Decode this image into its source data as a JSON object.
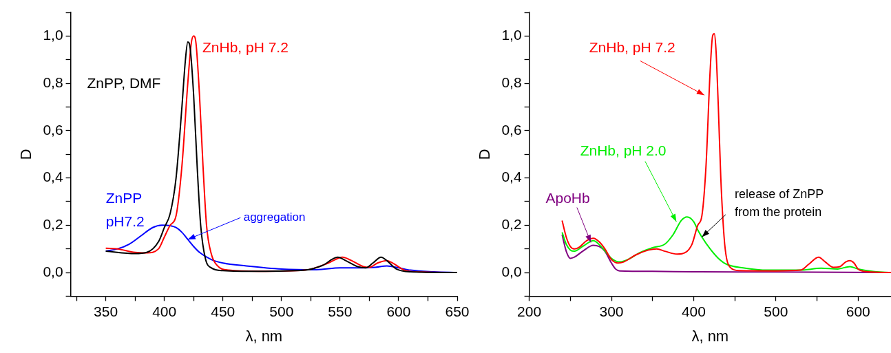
{
  "chart_data": [
    {
      "type": "line",
      "xlabel": "λ, nm",
      "ylabel": "D",
      "xlim": [
        320,
        650
      ],
      "ylim": [
        -0.1,
        1.1
      ],
      "xticks": [
        {
          "value": 325,
          "label": null
        },
        350,
        {
          "value": 375,
          "label": null
        },
        400,
        {
          "value": 425,
          "label": null
        },
        450,
        {
          "value": 475,
          "label": null
        },
        500,
        {
          "value": 525,
          "label": null
        },
        550,
        {
          "value": 575,
          "label": null
        },
        600,
        {
          "value": 625,
          "label": null
        },
        650
      ],
      "yticks": [
        {
          "value": -0.1,
          "label": null
        },
        {
          "value": 0,
          "label": "0,0"
        },
        {
          "value": 0.1,
          "label": null
        },
        {
          "value": 0.2,
          "label": "0,2"
        },
        {
          "value": 0.3,
          "label": null
        },
        {
          "value": 0.4,
          "label": "0,4"
        },
        {
          "value": 0.5,
          "label": null
        },
        {
          "value": 0.6,
          "label": "0,6"
        },
        {
          "value": 0.7,
          "label": null
        },
        {
          "value": 0.8,
          "label": "0,8"
        },
        {
          "value": 0.9,
          "label": null
        },
        {
          "value": 1,
          "label": "1,0"
        },
        {
          "value": 1.1,
          "label": null
        }
      ],
      "series": [
        {
          "name": "ZnPP, DMF",
          "color": "#000000",
          "x": [
            350,
            375,
            385,
            395,
            400,
            405,
            410,
            415,
            418,
            420,
            422,
            425,
            428,
            431,
            435,
            440,
            450,
            480,
            520,
            535,
            548,
            555,
            565,
            572,
            578,
            585,
            590,
            598,
            610,
            650
          ],
          "values": [
            0.09,
            0.08,
            0.085,
            0.13,
            0.19,
            0.25,
            0.4,
            0.7,
            0.9,
            0.975,
            0.95,
            0.75,
            0.45,
            0.2,
            0.06,
            0.02,
            0.008,
            0.005,
            0.01,
            0.03,
            0.065,
            0.05,
            0.025,
            0.02,
            0.04,
            0.065,
            0.05,
            0.015,
            0.003,
            0.0
          ]
        },
        {
          "name": "ZnHb, pH 7.2",
          "color": "#ff0000",
          "x": [
            350,
            360,
            375,
            385,
            395,
            400,
            405,
            410,
            415,
            420,
            423,
            425,
            427,
            430,
            433,
            436,
            440,
            445,
            455,
            480,
            520,
            540,
            552,
            560,
            570,
            575,
            582,
            590,
            595,
            605,
            620,
            650
          ],
          "values": [
            0.103,
            0.1,
            0.085,
            0.083,
            0.1,
            0.15,
            0.2,
            0.24,
            0.45,
            0.8,
            0.97,
            1.0,
            0.97,
            0.75,
            0.45,
            0.2,
            0.08,
            0.03,
            0.01,
            0.005,
            0.01,
            0.04,
            0.065,
            0.05,
            0.025,
            0.022,
            0.04,
            0.05,
            0.04,
            0.01,
            0.002,
            0.0
          ]
        },
        {
          "name": "ZnPP\npH7.2",
          "color": "#0000ff",
          "x": [
            350,
            360,
            370,
            380,
            390,
            398,
            405,
            410,
            415,
            420,
            425,
            430,
            440,
            450,
            470,
            500,
            530,
            550,
            570,
            580,
            590,
            600,
            610,
            630,
            650
          ],
          "values": [
            0.09,
            0.1,
            0.12,
            0.155,
            0.19,
            0.2,
            0.198,
            0.19,
            0.17,
            0.14,
            0.11,
            0.085,
            0.055,
            0.04,
            0.028,
            0.015,
            0.012,
            0.02,
            0.02,
            0.022,
            0.028,
            0.02,
            0.01,
            0.003,
            0.0
          ]
        }
      ],
      "annotations": [
        {
          "text": "aggregation",
          "x": 420,
          "y": 0.14
        }
      ]
    },
    {
      "type": "line",
      "xlabel": "λ, nm",
      "ylabel": "D",
      "xlim": [
        200,
        640
      ],
      "ylim": [
        -0.1,
        1.1
      ],
      "xticks": [
        200,
        {
          "value": 250,
          "label": null
        },
        300,
        {
          "value": 350,
          "label": null
        },
        400,
        {
          "value": 450,
          "label": null
        },
        500,
        {
          "value": 550,
          "label": null
        },
        600
      ],
      "yticks": [
        {
          "value": -0.1,
          "label": null
        },
        {
          "value": 0,
          "label": "0,0"
        },
        {
          "value": 0.1,
          "label": null
        },
        {
          "value": 0.2,
          "label": "0,2"
        },
        {
          "value": 0.3,
          "label": null
        },
        {
          "value": 0.4,
          "label": "0,4"
        },
        {
          "value": 0.5,
          "label": null
        },
        {
          "value": 0.6,
          "label": "0,6"
        },
        {
          "value": 0.7,
          "label": null
        },
        {
          "value": 0.8,
          "label": "0,8"
        },
        {
          "value": 0.9,
          "label": null
        },
        {
          "value": 1,
          "label": "1,0"
        },
        {
          "value": 1.1,
          "label": null
        }
      ],
      "series": [
        {
          "name": "ZnHb, pH 7.2",
          "color": "#ff0000",
          "x": [
            240,
            245,
            250,
            255,
            260,
            270,
            278,
            285,
            292,
            300,
            308,
            315,
            330,
            345,
            355,
            365,
            380,
            390,
            398,
            405,
            410,
            415,
            420,
            423,
            425,
            427,
            430,
            433,
            437,
            440,
            445,
            455,
            500,
            530,
            540,
            552,
            560,
            570,
            578,
            585,
            590,
            595,
            600,
            610,
            640
          ],
          "values": [
            0.22,
            0.15,
            0.11,
            0.1,
            0.105,
            0.135,
            0.145,
            0.13,
            0.1,
            0.055,
            0.04,
            0.045,
            0.075,
            0.095,
            0.1,
            0.09,
            0.078,
            0.085,
            0.12,
            0.2,
            0.24,
            0.45,
            0.85,
            1.0,
            1.01,
            0.95,
            0.7,
            0.4,
            0.15,
            0.06,
            0.02,
            0.008,
            0.007,
            0.01,
            0.035,
            0.065,
            0.045,
            0.022,
            0.025,
            0.045,
            0.05,
            0.04,
            0.015,
            0.004,
            0.0
          ]
        },
        {
          "name": "ZnHb, pH 2.0",
          "color": "#00ee00",
          "x": [
            240,
            245,
            250,
            255,
            265,
            278,
            290,
            300,
            310,
            320,
            335,
            350,
            365,
            375,
            385,
            392,
            400,
            405,
            410,
            420,
            430,
            440,
            460,
            490,
            530,
            555,
            575,
            590,
            600,
            620,
            640
          ],
          "values": [
            0.17,
            0.12,
            0.095,
            0.09,
            0.11,
            0.135,
            0.1,
            0.06,
            0.045,
            0.055,
            0.085,
            0.105,
            0.12,
            0.16,
            0.22,
            0.235,
            0.215,
            0.18,
            0.15,
            0.1,
            0.06,
            0.035,
            0.02,
            0.01,
            0.01,
            0.018,
            0.015,
            0.025,
            0.015,
            0.004,
            0.0
          ]
        },
        {
          "name": "ApoHb",
          "color": "#800080",
          "x": [
            240,
            245,
            250,
            255,
            265,
            278,
            285,
            292,
            300,
            305,
            310,
            350,
            400,
            500,
            640
          ],
          "values": [
            0.16,
            0.09,
            0.06,
            0.065,
            0.09,
            0.115,
            0.11,
            0.09,
            0.04,
            0.015,
            0.007,
            0.005,
            0.003,
            0.002,
            0.0
          ]
        }
      ],
      "annotations": [
        {
          "text": "release of ZnPP\nfrom the protein",
          "x": 410,
          "y": 0.15
        }
      ]
    }
  ]
}
